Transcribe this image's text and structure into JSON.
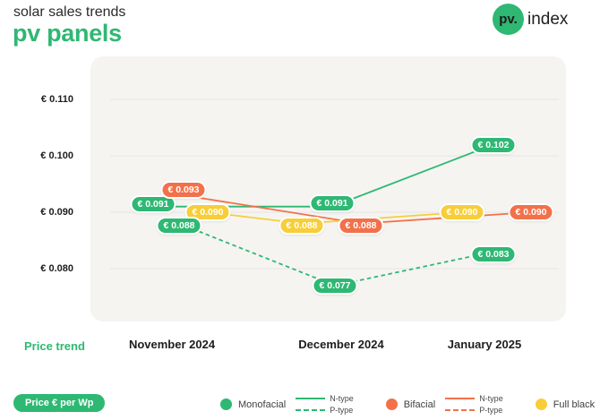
{
  "header": {
    "subtitle": "solar sales trends",
    "title": "pv panels",
    "logo": {
      "circle_text": "pv.",
      "wordmark": "index"
    }
  },
  "colors": {
    "brand_green": "#2eb873",
    "orange": "#f2714a",
    "yellow": "#f7ce3a",
    "panel_bg": "#f5f4f1",
    "gridline": "#e7e6e3",
    "text_dark": "#1e1e1e",
    "text_gray": "#4a4a4a"
  },
  "chart_data": {
    "type": "line",
    "title": "pv panels — solar sales trends",
    "unit": "€ per Wp",
    "x_categories": [
      "November 2024",
      "December 2024",
      "January 2025"
    ],
    "y_ticks": [
      0.11,
      0.1,
      0.09,
      0.08
    ],
    "y_tick_labels": [
      "€ 0.110",
      "€ 0.100",
      "€ 0.090",
      "€ 0.080"
    ],
    "ylim": [
      0.071,
      0.118
    ],
    "grid": true,
    "legend_position": "bottom",
    "series": [
      {
        "name": "Monofacial N-type",
        "color": "#2eb873",
        "line_style": "solid",
        "values": [
          0.091,
          0.091,
          0.102
        ]
      },
      {
        "name": "Monofacial P-type",
        "color": "#2eb873",
        "line_style": "dashed",
        "values": [
          0.088,
          0.077,
          0.083
        ]
      },
      {
        "name": "Bifacial N-type",
        "color": "#f2714a",
        "line_style": "solid",
        "values": [
          0.093,
          0.088,
          0.09
        ]
      },
      {
        "name": "Full black",
        "color": "#f7ce3a",
        "line_style": "solid",
        "values": [
          0.09,
          0.088,
          0.09
        ]
      }
    ],
    "point_labels": [
      {
        "month": "November 2024",
        "series": "Monofacial N-type",
        "text": "€ 0.091"
      },
      {
        "month": "November 2024",
        "series": "Bifacial N-type",
        "text": "€ 0.093"
      },
      {
        "month": "November 2024",
        "series": "Full black",
        "text": "€ 0.090"
      },
      {
        "month": "November 2024",
        "series": "Monofacial P-type",
        "text": "€ 0.088"
      },
      {
        "month": "December 2024",
        "series": "Monofacial N-type",
        "text": "€ 0.091"
      },
      {
        "month": "December 2024",
        "series": "Full black",
        "text": "€ 0.088"
      },
      {
        "month": "December 2024",
        "series": "Bifacial N-type",
        "text": "€ 0.088"
      },
      {
        "month": "December 2024",
        "series": "Monofacial P-type",
        "text": "€ 0.077"
      },
      {
        "month": "January 2025",
        "series": "Monofacial N-type",
        "text": "€ 0.102"
      },
      {
        "month": "January 2025",
        "series": "Full black",
        "text": "€ 0.090"
      },
      {
        "month": "January 2025",
        "series": "Bifacial N-type",
        "text": "€ 0.090"
      },
      {
        "month": "January 2025",
        "series": "Monofacial P-type",
        "text": "€ 0.083"
      }
    ]
  },
  "footer": {
    "row_label": "Price trend",
    "unit_badge": "Price € per Wp"
  },
  "legend": {
    "groups": [
      {
        "label": "Monofacial",
        "color": "#2eb873",
        "entries": [
          {
            "style": "solid",
            "label": "N-type"
          },
          {
            "style": "dashed",
            "label": "P-type"
          }
        ]
      },
      {
        "label": "Bifacial",
        "color": "#f2714a",
        "entries": [
          {
            "style": "solid",
            "label": "N-type"
          },
          {
            "style": "dashed",
            "label": "P-type"
          }
        ]
      },
      {
        "label": "Full black",
        "color": "#f7ce3a",
        "entries": []
      }
    ]
  }
}
